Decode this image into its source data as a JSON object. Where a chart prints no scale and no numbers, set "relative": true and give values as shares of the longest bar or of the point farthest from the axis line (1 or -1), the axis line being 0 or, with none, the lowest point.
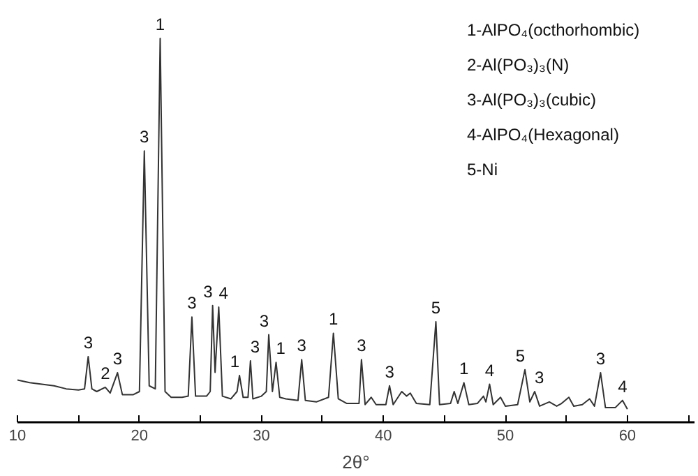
{
  "chart_data": {
    "type": "line",
    "relative": true,
    "xlabel": "2θ°",
    "xlim": [
      10,
      65.5
    ],
    "xticks": [
      10,
      {
        "value": 15,
        "label": null
      },
      20,
      {
        "value": 25,
        "label": null
      },
      30,
      {
        "value": 35,
        "label": null
      },
      40,
      {
        "value": 45,
        "label": null
      },
      50,
      {
        "value": 55,
        "label": null
      },
      60,
      {
        "value": 65,
        "label": null
      }
    ],
    "grid": false,
    "marker": "none",
    "line_style": "solid",
    "series": [
      {
        "color": "#333333",
        "x": [
          10,
          11,
          12,
          13,
          14,
          15,
          15.5,
          15.8,
          16.1,
          16.5,
          17.2,
          17.6,
          18.2,
          18.6,
          19.5,
          20.0,
          20.4,
          20.8,
          21.3,
          21.7,
          22.1,
          22.6,
          23.5,
          24.0,
          24.3,
          24.6,
          25.5,
          25.8,
          26.0,
          26.2,
          26.5,
          26.8,
          27.5,
          28.0,
          28.2,
          28.5,
          28.9,
          29.1,
          29.3,
          30.0,
          30.4,
          30.6,
          30.9,
          31.2,
          31.5,
          32.0,
          33.0,
          33.3,
          33.6,
          34.5,
          35.5,
          35.9,
          36.3,
          37.0,
          38.0,
          38.2,
          38.5,
          39.0,
          39.4,
          40.2,
          40.5,
          40.8,
          41.5,
          41.9,
          42.2,
          42.7,
          43.8,
          44.3,
          44.6,
          45.5,
          45.8,
          46.1,
          46.6,
          47.0,
          47.7,
          48.2,
          48.4,
          48.7,
          49.0,
          49.6,
          50.0,
          51.0,
          51.6,
          52.0,
          52.4,
          52.8,
          53.6,
          54.2,
          54.6,
          55.2,
          55.6,
          56.3,
          56.9,
          57.3,
          57.8,
          58.2,
          59.0,
          59.6,
          60.0
        ],
        "values": [
          0.11,
          0.103,
          0.099,
          0.095,
          0.087,
          0.084,
          0.087,
          0.171,
          0.087,
          0.08,
          0.091,
          0.076,
          0.129,
          0.072,
          0.072,
          0.08,
          0.707,
          0.095,
          0.087,
          1.0,
          0.08,
          0.065,
          0.065,
          0.068,
          0.274,
          0.068,
          0.068,
          0.08,
          0.304,
          0.13,
          0.3,
          0.068,
          0.061,
          0.08,
          0.122,
          0.065,
          0.065,
          0.16,
          0.061,
          0.068,
          0.08,
          0.228,
          0.08,
          0.156,
          0.065,
          0.061,
          0.057,
          0.163,
          0.057,
          0.053,
          0.065,
          0.232,
          0.061,
          0.049,
          0.049,
          0.163,
          0.046,
          0.065,
          0.046,
          0.046,
          0.095,
          0.046,
          0.08,
          0.068,
          0.076,
          0.049,
          0.046,
          0.262,
          0.046,
          0.049,
          0.08,
          0.049,
          0.103,
          0.046,
          0.049,
          0.068,
          0.053,
          0.099,
          0.046,
          0.065,
          0.042,
          0.046,
          0.137,
          0.053,
          0.08,
          0.042,
          0.053,
          0.042,
          0.049,
          0.065,
          0.042,
          0.046,
          0.061,
          0.042,
          0.129,
          0.038,
          0.038,
          0.057,
          0.034
        ]
      }
    ],
    "annotations": [
      {
        "text": "3",
        "x": 15.8,
        "y": 0.171
      },
      {
        "text": "2",
        "x": 17.2,
        "y": 0.091
      },
      {
        "text": "3",
        "x": 18.2,
        "y": 0.129
      },
      {
        "text": "3",
        "x": 20.4,
        "y": 0.707
      },
      {
        "text": "1",
        "x": 21.7,
        "y": 1.0
      },
      {
        "text": "3",
        "x": 24.3,
        "y": 0.274
      },
      {
        "text": "3",
        "x": 26.0,
        "y": 0.304
      },
      {
        "text": "4",
        "x": 26.5,
        "y": 0.3
      },
      {
        "text": "1",
        "x": 28.2,
        "y": 0.122
      },
      {
        "text": "3",
        "x": 29.1,
        "y": 0.16
      },
      {
        "text": "3",
        "x": 30.6,
        "y": 0.228
      },
      {
        "text": "1",
        "x": 31.2,
        "y": 0.156
      },
      {
        "text": "3",
        "x": 33.3,
        "y": 0.163
      },
      {
        "text": "1",
        "x": 35.9,
        "y": 0.232
      },
      {
        "text": "3",
        "x": 38.2,
        "y": 0.163
      },
      {
        "text": "3",
        "x": 40.5,
        "y": 0.095
      },
      {
        "text": "5",
        "x": 44.3,
        "y": 0.262
      },
      {
        "text": "1",
        "x": 46.6,
        "y": 0.103
      },
      {
        "text": "4",
        "x": 48.7,
        "y": 0.099
      },
      {
        "text": "5",
        "x": 51.6,
        "y": 0.137
      },
      {
        "text": "3",
        "x": 52.4,
        "y": 0.08
      },
      {
        "text": "3",
        "x": 57.8,
        "y": 0.129
      },
      {
        "text": "4",
        "x": 59.6,
        "y": 0.057
      },
      "1-AlPO₄(octhorhombic)",
      "2-Al(PO₃)₃(N)",
      "3-Al(PO₃)₃(cubic)",
      "4-AlPO₄(Hexagonal)",
      "5-Ni"
    ]
  }
}
